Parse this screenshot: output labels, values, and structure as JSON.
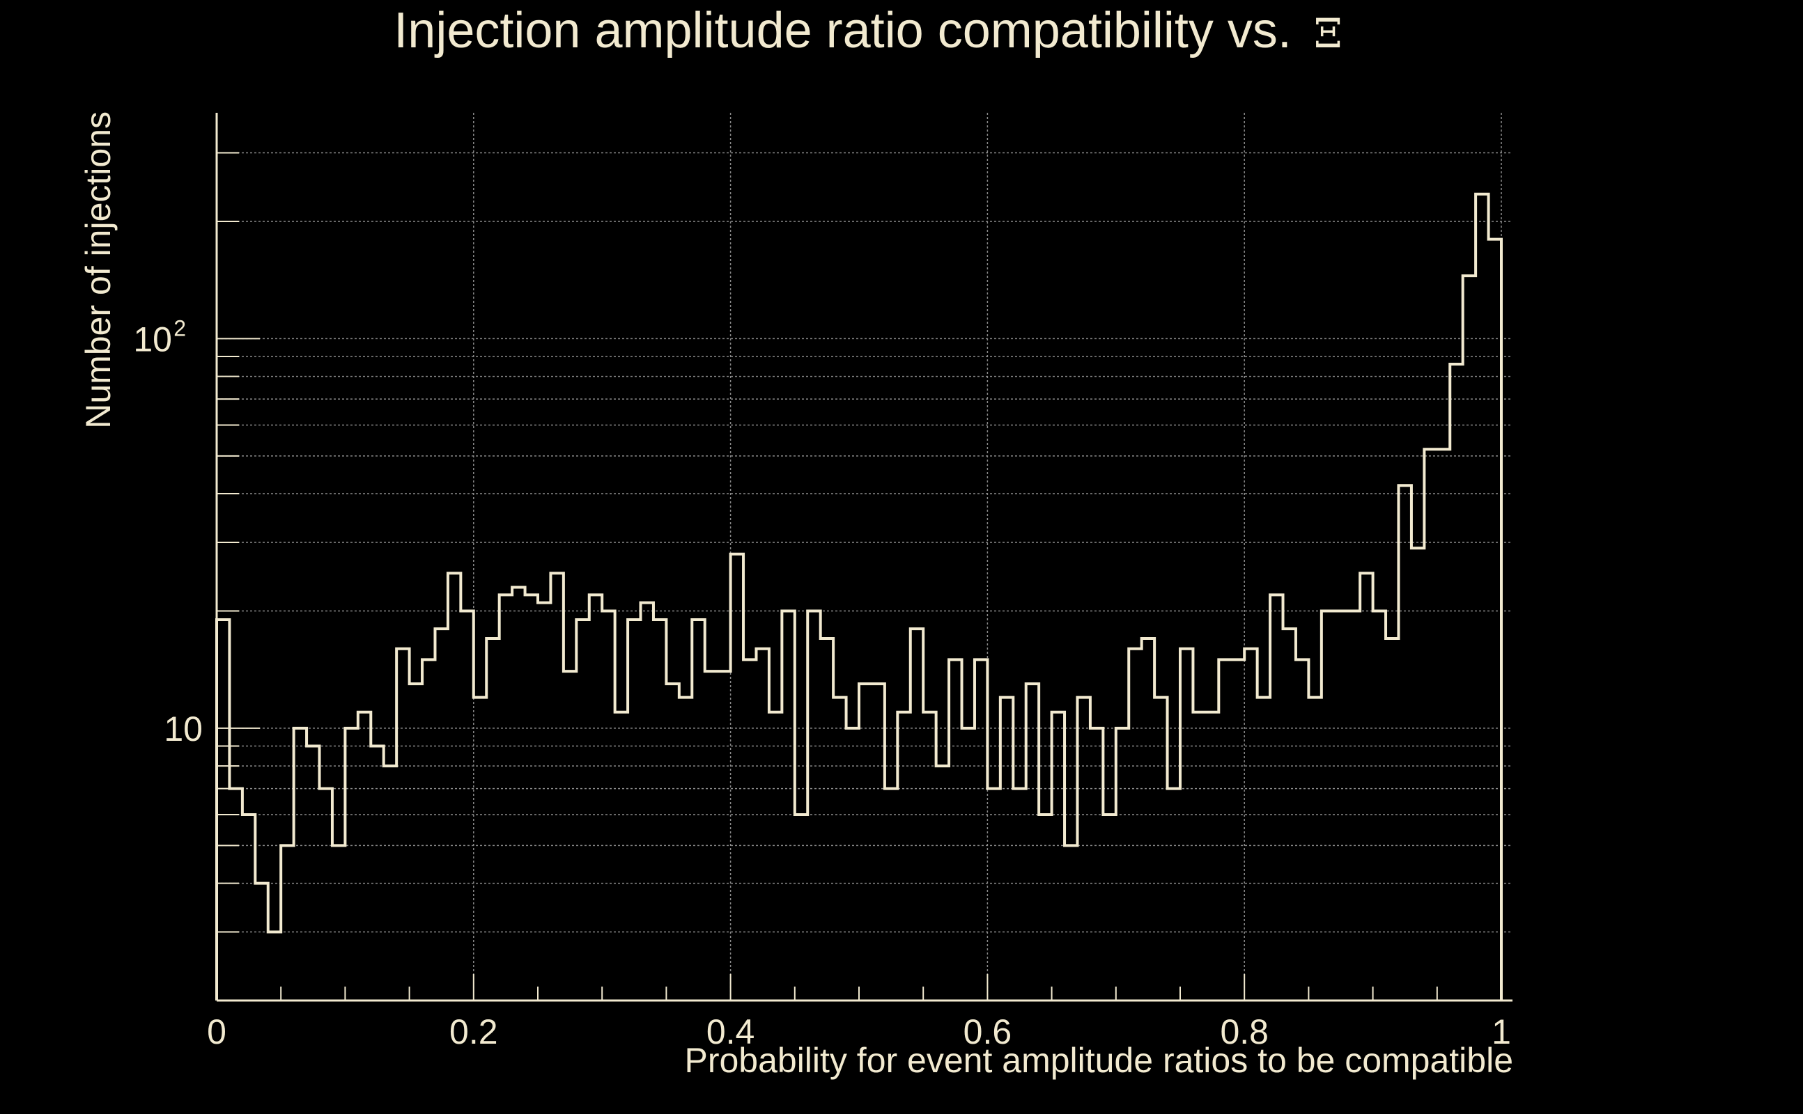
{
  "chart_data": {
    "type": "histogram",
    "title": "Injection amplitude ratio compatibility vs.",
    "title_symbol": "Ξ",
    "xlabel": "Probability for event amplitude ratios to be compatible",
    "ylabel": "Number of injections",
    "xlim": [
      0,
      1
    ],
    "ylim": [
      2,
      380
    ],
    "yscale": "log",
    "grid": true,
    "colors": {
      "background": "#000000",
      "foreground": "#f2ead0",
      "grid": "#8a8a8a"
    },
    "x_ticks": [
      {
        "value": 0,
        "label": "0"
      },
      {
        "value": 0.2,
        "label": "0.2"
      },
      {
        "value": 0.4,
        "label": "0.4"
      },
      {
        "value": 0.6,
        "label": "0.6"
      },
      {
        "value": 0.8,
        "label": "0.8"
      },
      {
        "value": 1,
        "label": "1"
      }
    ],
    "y_ticks": [
      {
        "value": 10,
        "base": "10",
        "exp": ""
      },
      {
        "value": 100,
        "base": "10",
        "exp": "2"
      }
    ],
    "bin_width": 0.01,
    "values": [
      19,
      7,
      6,
      4,
      3,
      5,
      10,
      9,
      7,
      5,
      10,
      11,
      9,
      8,
      16,
      13,
      15,
      18,
      25,
      20,
      12,
      17,
      22,
      23,
      22,
      21,
      25,
      14,
      19,
      22,
      20,
      11,
      19,
      21,
      19,
      13,
      12,
      19,
      14,
      14,
      28,
      15,
      16,
      11,
      20,
      6,
      20,
      17,
      12,
      10,
      13,
      13,
      7,
      11,
      18,
      11,
      8,
      15,
      10,
      15,
      7,
      12,
      7,
      13,
      6,
      11,
      5,
      12,
      10,
      6,
      10,
      16,
      17,
      12,
      7,
      16,
      11,
      11,
      15,
      15,
      16,
      12,
      22,
      18,
      15,
      12,
      20,
      20,
      20,
      25,
      20,
      17,
      42,
      29,
      52,
      52,
      86,
      145,
      235,
      180
    ]
  }
}
